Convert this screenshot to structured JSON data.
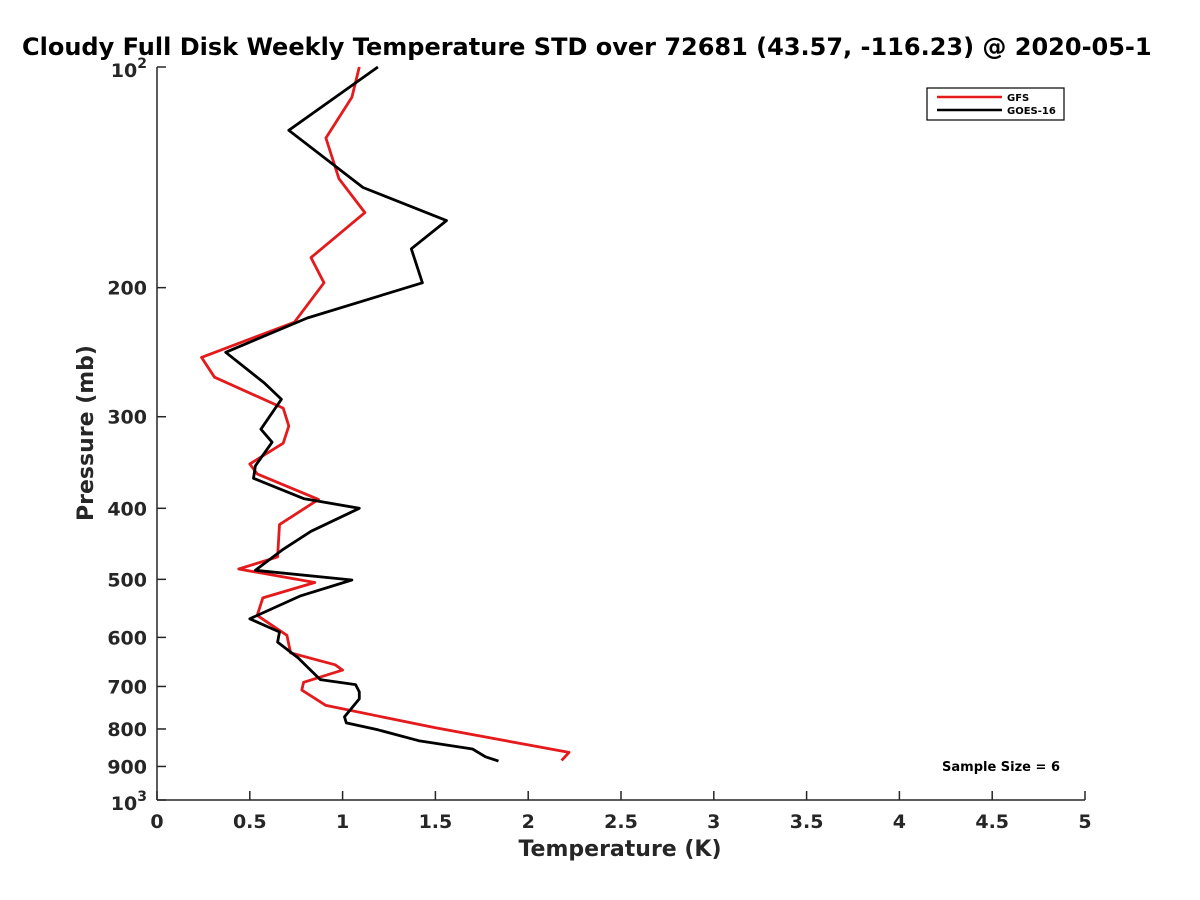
{
  "chart_data": {
    "type": "line",
    "title": "Cloudy Full Disk Weekly Temperature STD over 72681 (43.57, -116.23) @ 2020-05-1",
    "xlabel": "Temperature (K)",
    "ylabel": "Pressure (mb)",
    "xlim": [
      0,
      5
    ],
    "ylim": [
      100,
      1000
    ],
    "y_scale": "log",
    "y_reversed": true,
    "grid": false,
    "legend_position": "top-right",
    "x_ticks": [
      "0",
      "0.5",
      "1",
      "1.5",
      "2",
      "2.5",
      "3",
      "3.5",
      "4",
      "4.5",
      "5"
    ],
    "y_ticks": [
      {
        "value": 200,
        "label": "200"
      },
      {
        "value": 300,
        "label": "300"
      },
      {
        "value": 400,
        "label": "400"
      },
      {
        "value": 500,
        "label": "500"
      },
      {
        "value": 600,
        "label": "600"
      },
      {
        "value": 700,
        "label": "700"
      },
      {
        "value": 800,
        "label": "800"
      },
      {
        "value": 900,
        "label": "900"
      }
    ],
    "y_power_ticks": [
      {
        "value": 100,
        "base": "10",
        "exp": "2"
      },
      {
        "value": 1000,
        "base": "10",
        "exp": "3"
      }
    ],
    "series": [
      {
        "name": "GFS",
        "color": "#e41a1c",
        "points": [
          [
            1.09,
            100
          ],
          [
            1.05,
            110
          ],
          [
            0.91,
            125
          ],
          [
            0.98,
            142
          ],
          [
            1.12,
            158
          ],
          [
            0.83,
            182
          ],
          [
            0.9,
            197
          ],
          [
            0.74,
            223
          ],
          [
            0.24,
            249
          ],
          [
            0.31,
            265
          ],
          [
            0.68,
            292
          ],
          [
            0.71,
            309
          ],
          [
            0.68,
            326
          ],
          [
            0.5,
            348
          ],
          [
            0.54,
            359
          ],
          [
            0.87,
            389
          ],
          [
            0.66,
            421
          ],
          [
            0.65,
            466
          ],
          [
            0.44,
            484
          ],
          [
            0.85,
            505
          ],
          [
            0.57,
            530
          ],
          [
            0.54,
            560
          ],
          [
            0.7,
            596
          ],
          [
            0.72,
            630
          ],
          [
            0.96,
            654
          ],
          [
            1.0,
            665
          ],
          [
            0.79,
            691
          ],
          [
            0.78,
            708
          ],
          [
            0.91,
            743
          ],
          [
            1.5,
            797
          ],
          [
            2.22,
            861
          ],
          [
            2.18,
            883
          ]
        ]
      },
      {
        "name": "GOES-16",
        "color": "#000000",
        "points": [
          [
            1.19,
            100
          ],
          [
            0.71,
            122
          ],
          [
            1.11,
            146
          ],
          [
            1.56,
            162
          ],
          [
            1.37,
            177
          ],
          [
            1.43,
            197
          ],
          [
            0.81,
            220
          ],
          [
            0.37,
            245
          ],
          [
            0.58,
            270
          ],
          [
            0.67,
            284
          ],
          [
            0.56,
            312
          ],
          [
            0.62,
            325
          ],
          [
            0.53,
            350
          ],
          [
            0.52,
            364
          ],
          [
            0.79,
            388
          ],
          [
            1.09,
            400
          ],
          [
            0.83,
            430
          ],
          [
            0.68,
            455
          ],
          [
            0.53,
            486
          ],
          [
            1.05,
            501
          ],
          [
            0.77,
            527
          ],
          [
            0.5,
            566
          ],
          [
            0.66,
            590
          ],
          [
            0.65,
            609
          ],
          [
            0.76,
            640
          ],
          [
            0.88,
            685
          ],
          [
            1.07,
            696
          ],
          [
            1.09,
            712
          ],
          [
            1.09,
            728
          ],
          [
            1.01,
            770
          ],
          [
            1.02,
            785
          ],
          [
            1.19,
            802
          ],
          [
            1.41,
            830
          ],
          [
            1.7,
            852
          ],
          [
            1.77,
            873
          ],
          [
            1.84,
            885
          ]
        ]
      }
    ],
    "annotations": [
      "Sample Size = 6"
    ]
  }
}
